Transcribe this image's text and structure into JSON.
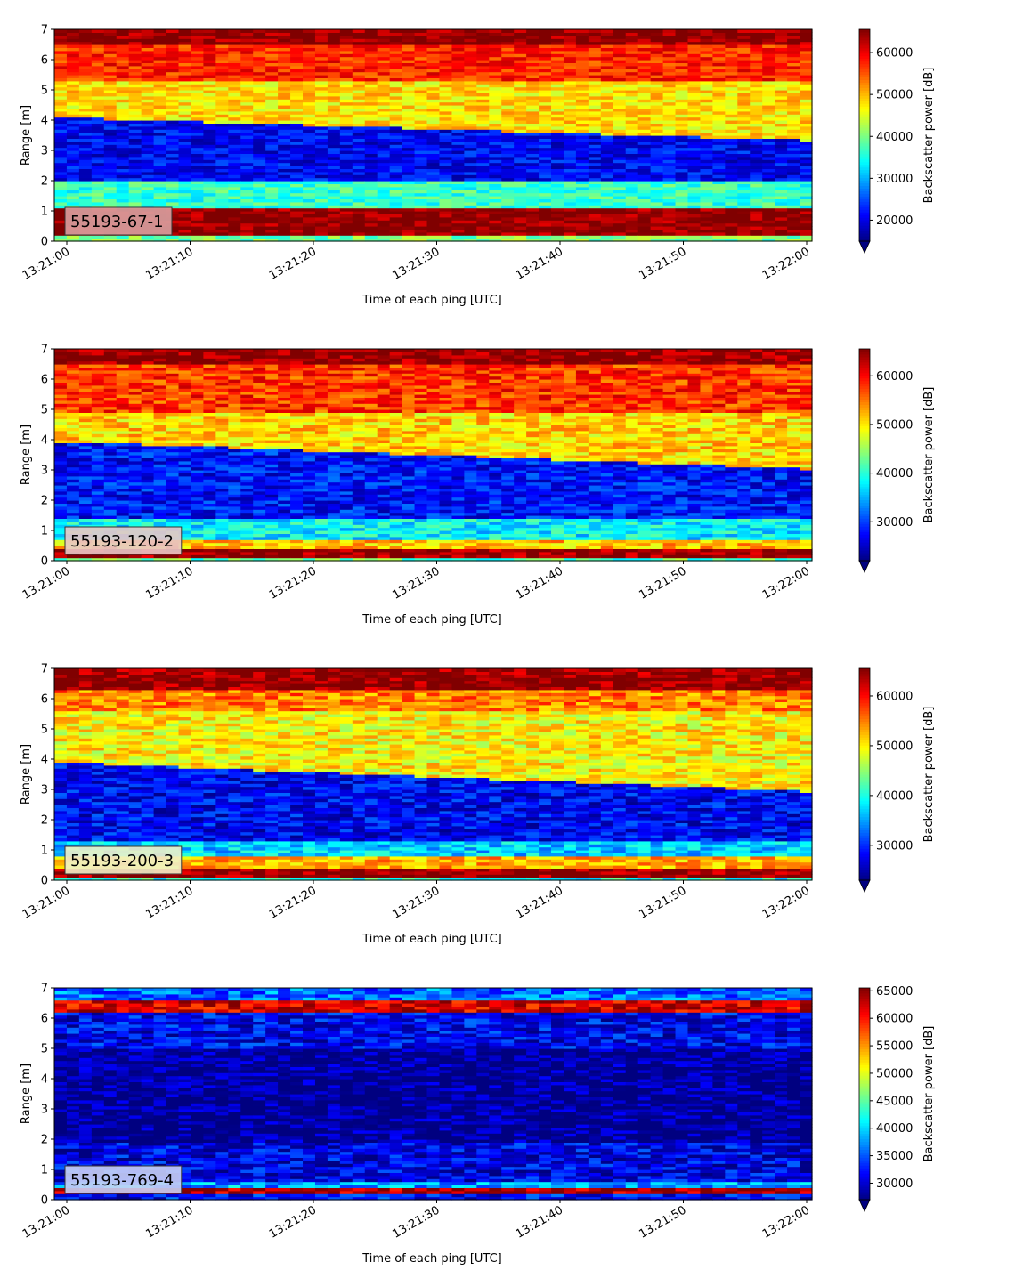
{
  "chart_data": [
    {
      "type": "heatmap",
      "label": "55193-67-1",
      "xlabel": "Time of each ping [UTC]",
      "ylabel": "Range [m]",
      "colorbar_label": "Backscatter power [dB]",
      "colormap": "jet",
      "x_ticks": [
        "13:21:00",
        "13:21:10",
        "13:21:20",
        "13:21:30",
        "13:21:40",
        "13:21:50",
        "13:22:00"
      ],
      "xlim": [
        "13:21:00",
        "13:22:00"
      ],
      "ylim": [
        0,
        7
      ],
      "y_ticks": [
        0,
        1,
        2,
        3,
        4,
        5,
        6,
        7
      ],
      "clim": [
        15000,
        65535
      ],
      "colorbar_ticks": [
        20000,
        30000,
        40000,
        50000,
        60000
      ],
      "colorbar_extend": "min",
      "label_box_color": "#d9a0a0",
      "layers": [
        {
          "range_m": [
            0,
            0.2
          ],
          "value": 40000
        },
        {
          "range_m": [
            0.2,
            1.15
          ],
          "value": 65000
        },
        {
          "range_m": [
            1.15,
            2.05
          ],
          "value": 36500
        },
        {
          "range_m": [
            2.05,
            "boundary"
          ],
          "value": 21000
        },
        {
          "range_m": [
            "boundary",
            5.3
          ],
          "value": 48000
        },
        {
          "range_m": [
            5.3,
            6.5
          ],
          "value": 57500
        },
        {
          "range_m": [
            6.5,
            7.0
          ],
          "value": 65000
        }
      ],
      "boundary_range_m": {
        "start": 4.1,
        "end": 3.35
      }
    },
    {
      "type": "heatmap",
      "label": "55193-120-2",
      "xlabel": "Time of each ping [UTC]",
      "ylabel": "Range [m]",
      "colorbar_label": "Backscatter power [dB]",
      "colormap": "jet",
      "x_ticks": [
        "13:21:00",
        "13:21:10",
        "13:21:20",
        "13:21:30",
        "13:21:40",
        "13:21:50",
        "13:22:00"
      ],
      "xlim": [
        "13:21:00",
        "13:22:00"
      ],
      "ylim": [
        0,
        7
      ],
      "y_ticks": [
        0,
        1,
        2,
        3,
        4,
        5,
        6,
        7
      ],
      "clim": [
        22000,
        65535
      ],
      "colorbar_ticks": [
        30000,
        40000,
        50000,
        60000
      ],
      "colorbar_extend": "min",
      "label_box_color": "#e8c8c8",
      "layers": [
        {
          "range_m": [
            0,
            0.12
          ],
          "value": 42000
        },
        {
          "range_m": [
            0.12,
            0.45
          ],
          "value": 65000
        },
        {
          "range_m": [
            0.45,
            0.75
          ],
          "value": 52000
        },
        {
          "range_m": [
            0.75,
            1.45
          ],
          "value": 38000
        },
        {
          "range_m": [
            1.45,
            "boundary"
          ],
          "value": 28000
        },
        {
          "range_m": [
            "boundary",
            4.9
          ],
          "value": 51000
        },
        {
          "range_m": [
            4.9,
            6.5
          ],
          "value": 58000
        },
        {
          "range_m": [
            6.5,
            7.0
          ],
          "value": 65000
        }
      ],
      "boundary_range_m": {
        "start": 3.95,
        "end": 3.05
      }
    },
    {
      "type": "heatmap",
      "label": "55193-200-3",
      "xlabel": "Time of each ping [UTC]",
      "ylabel": "Range [m]",
      "colorbar_label": "Backscatter power [dB]",
      "colormap": "jet",
      "x_ticks": [
        "13:21:00",
        "13:21:10",
        "13:21:20",
        "13:21:30",
        "13:21:40",
        "13:21:50",
        "13:22:00"
      ],
      "xlim": [
        "13:21:00",
        "13:22:00"
      ],
      "ylim": [
        0,
        7
      ],
      "y_ticks": [
        0,
        1,
        2,
        3,
        4,
        5,
        6,
        7
      ],
      "clim": [
        23000,
        65535
      ],
      "colorbar_ticks": [
        30000,
        40000,
        50000,
        60000
      ],
      "colorbar_extend": "min",
      "label_box_color": "#f0f0c8",
      "layers": [
        {
          "range_m": [
            0,
            0.15
          ],
          "value": 40000
        },
        {
          "range_m": [
            0.15,
            0.45
          ],
          "value": 65000
        },
        {
          "range_m": [
            0.45,
            0.8
          ],
          "value": 53000
        },
        {
          "range_m": [
            0.8,
            1.35
          ],
          "value": 37000
        },
        {
          "range_m": [
            1.35,
            "boundary"
          ],
          "value": 28000
        },
        {
          "range_m": [
            "boundary",
            5.6
          ],
          "value": 50000
        },
        {
          "range_m": [
            5.6,
            6.3
          ],
          "value": 55000
        },
        {
          "range_m": [
            6.3,
            7.0
          ],
          "value": 65000
        }
      ],
      "boundary_range_m": {
        "start": 3.9,
        "end": 2.95
      }
    },
    {
      "type": "heatmap",
      "label": "55193-769-4",
      "xlabel": "Time of each ping [UTC]",
      "ylabel": "Range [m]",
      "colorbar_label": "Backscatter power [dB]",
      "colormap": "jet",
      "x_ticks": [
        "13:21:00",
        "13:21:10",
        "13:21:20",
        "13:21:30",
        "13:21:40",
        "13:21:50",
        "13:22:00"
      ],
      "xlim": [
        "13:21:00",
        "13:22:00"
      ],
      "ylim": [
        0,
        7
      ],
      "y_ticks": [
        0,
        1,
        2,
        3,
        4,
        5,
        6,
        7
      ],
      "clim": [
        27000,
        65535
      ],
      "colorbar_ticks": [
        30000,
        35000,
        40000,
        45000,
        50000,
        55000,
        60000,
        65000
      ],
      "colorbar_extend": "min",
      "label_box_color": "#c8d0f5",
      "layers": [
        {
          "range_m": [
            0,
            0.25
          ],
          "value": 32000
        },
        {
          "range_m": [
            0.25,
            0.38
          ],
          "value": 64000
        },
        {
          "range_m": [
            0.38,
            0.6
          ],
          "value": 38000
        },
        {
          "range_m": [
            0.6,
            1.9
          ],
          "value": 31000
        },
        {
          "range_m": [
            1.9,
            5.0
          ],
          "value": 27500
        },
        {
          "range_m": [
            5.0,
            6.2
          ],
          "value": 31500
        },
        {
          "range_m": [
            6.2,
            6.6
          ],
          "value": 62000
        },
        {
          "range_m": [
            6.6,
            7.0
          ],
          "value": 36000
        }
      ],
      "boundary_range_m": null
    }
  ]
}
